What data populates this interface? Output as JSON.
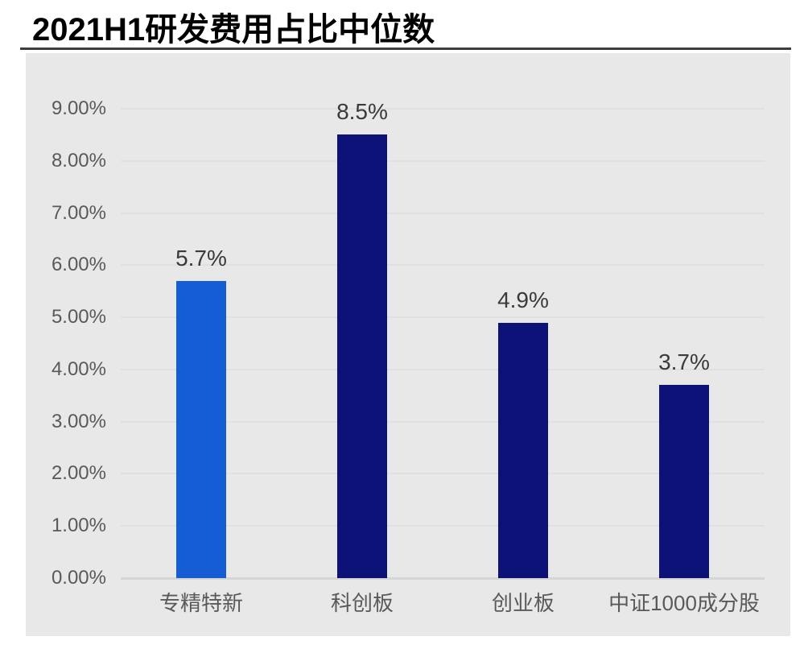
{
  "page": {
    "title": "2021H1研发费用占比中位数"
  },
  "chart_data": {
    "type": "bar",
    "title": "2021H1研发费用占比中位数",
    "categories": [
      "专精特新",
      "科创板",
      "创业板",
      "中证1000成分股"
    ],
    "values": [
      5.7,
      8.5,
      4.9,
      3.7
    ],
    "value_labels": [
      "5.7%",
      "8.5%",
      "4.9%",
      "3.7%"
    ],
    "ylim": [
      0,
      9
    ],
    "ytick_step": 1,
    "ytick_labels": [
      "0.00%",
      "1.00%",
      "2.00%",
      "3.00%",
      "4.00%",
      "5.00%",
      "6.00%",
      "7.00%",
      "8.00%",
      "9.00%"
    ],
    "xlabel": "",
    "ylabel": "",
    "grid": "horizontal",
    "legend": "none",
    "bar_colors": [
      "#155dd4",
      "#0d1278",
      "#0d1278",
      "#0d1278"
    ],
    "colors": {
      "bar_highlight": "#155dd4",
      "bar_default": "#0d1278",
      "plot_background": "#e8e8e8",
      "gridline": "#e0e0e0",
      "baseline": "#d5d5d5",
      "axis_label": "#595959",
      "value_label": "#3a3a3a",
      "title": "#000000",
      "separator": "#3d3d3d"
    }
  }
}
